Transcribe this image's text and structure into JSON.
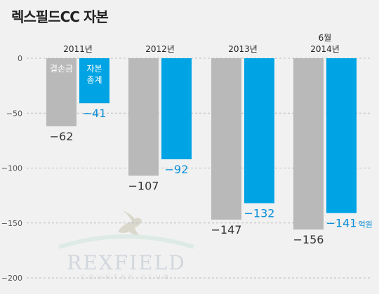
{
  "title": "렉스필드CC 자본",
  "chart_data": {
    "type": "bar",
    "categories": [
      [
        "2011년"
      ],
      [
        "2012년"
      ],
      [
        "2013년"
      ],
      [
        "6월",
        "2014년"
      ]
    ],
    "series": [
      {
        "name": "결손금",
        "values": [
          -62,
          -107,
          -147,
          -156
        ],
        "color": "#b9b9b9"
      },
      {
        "name": "자본 총계",
        "name_lines": [
          "자본",
          "총계"
        ],
        "values": [
          -41,
          -92,
          -132,
          -141
        ],
        "color": "#00a4e4"
      }
    ],
    "value_labels": {
      "gray": [
        "−62",
        "−107",
        "−147",
        "−156"
      ],
      "blue": [
        "−41",
        "−92",
        "−132",
        "−141"
      ]
    },
    "unit": "억원",
    "yticks": [
      0,
      -50,
      -100,
      -150,
      -200
    ],
    "ytick_labels": [
      "0",
      "−50",
      "−100",
      "−150",
      "−200"
    ],
    "ylim": [
      -200,
      0
    ],
    "grid": "dashed"
  },
  "watermark": {
    "name": "REXFIELD",
    "sub": "COUNTRY CLUB"
  }
}
